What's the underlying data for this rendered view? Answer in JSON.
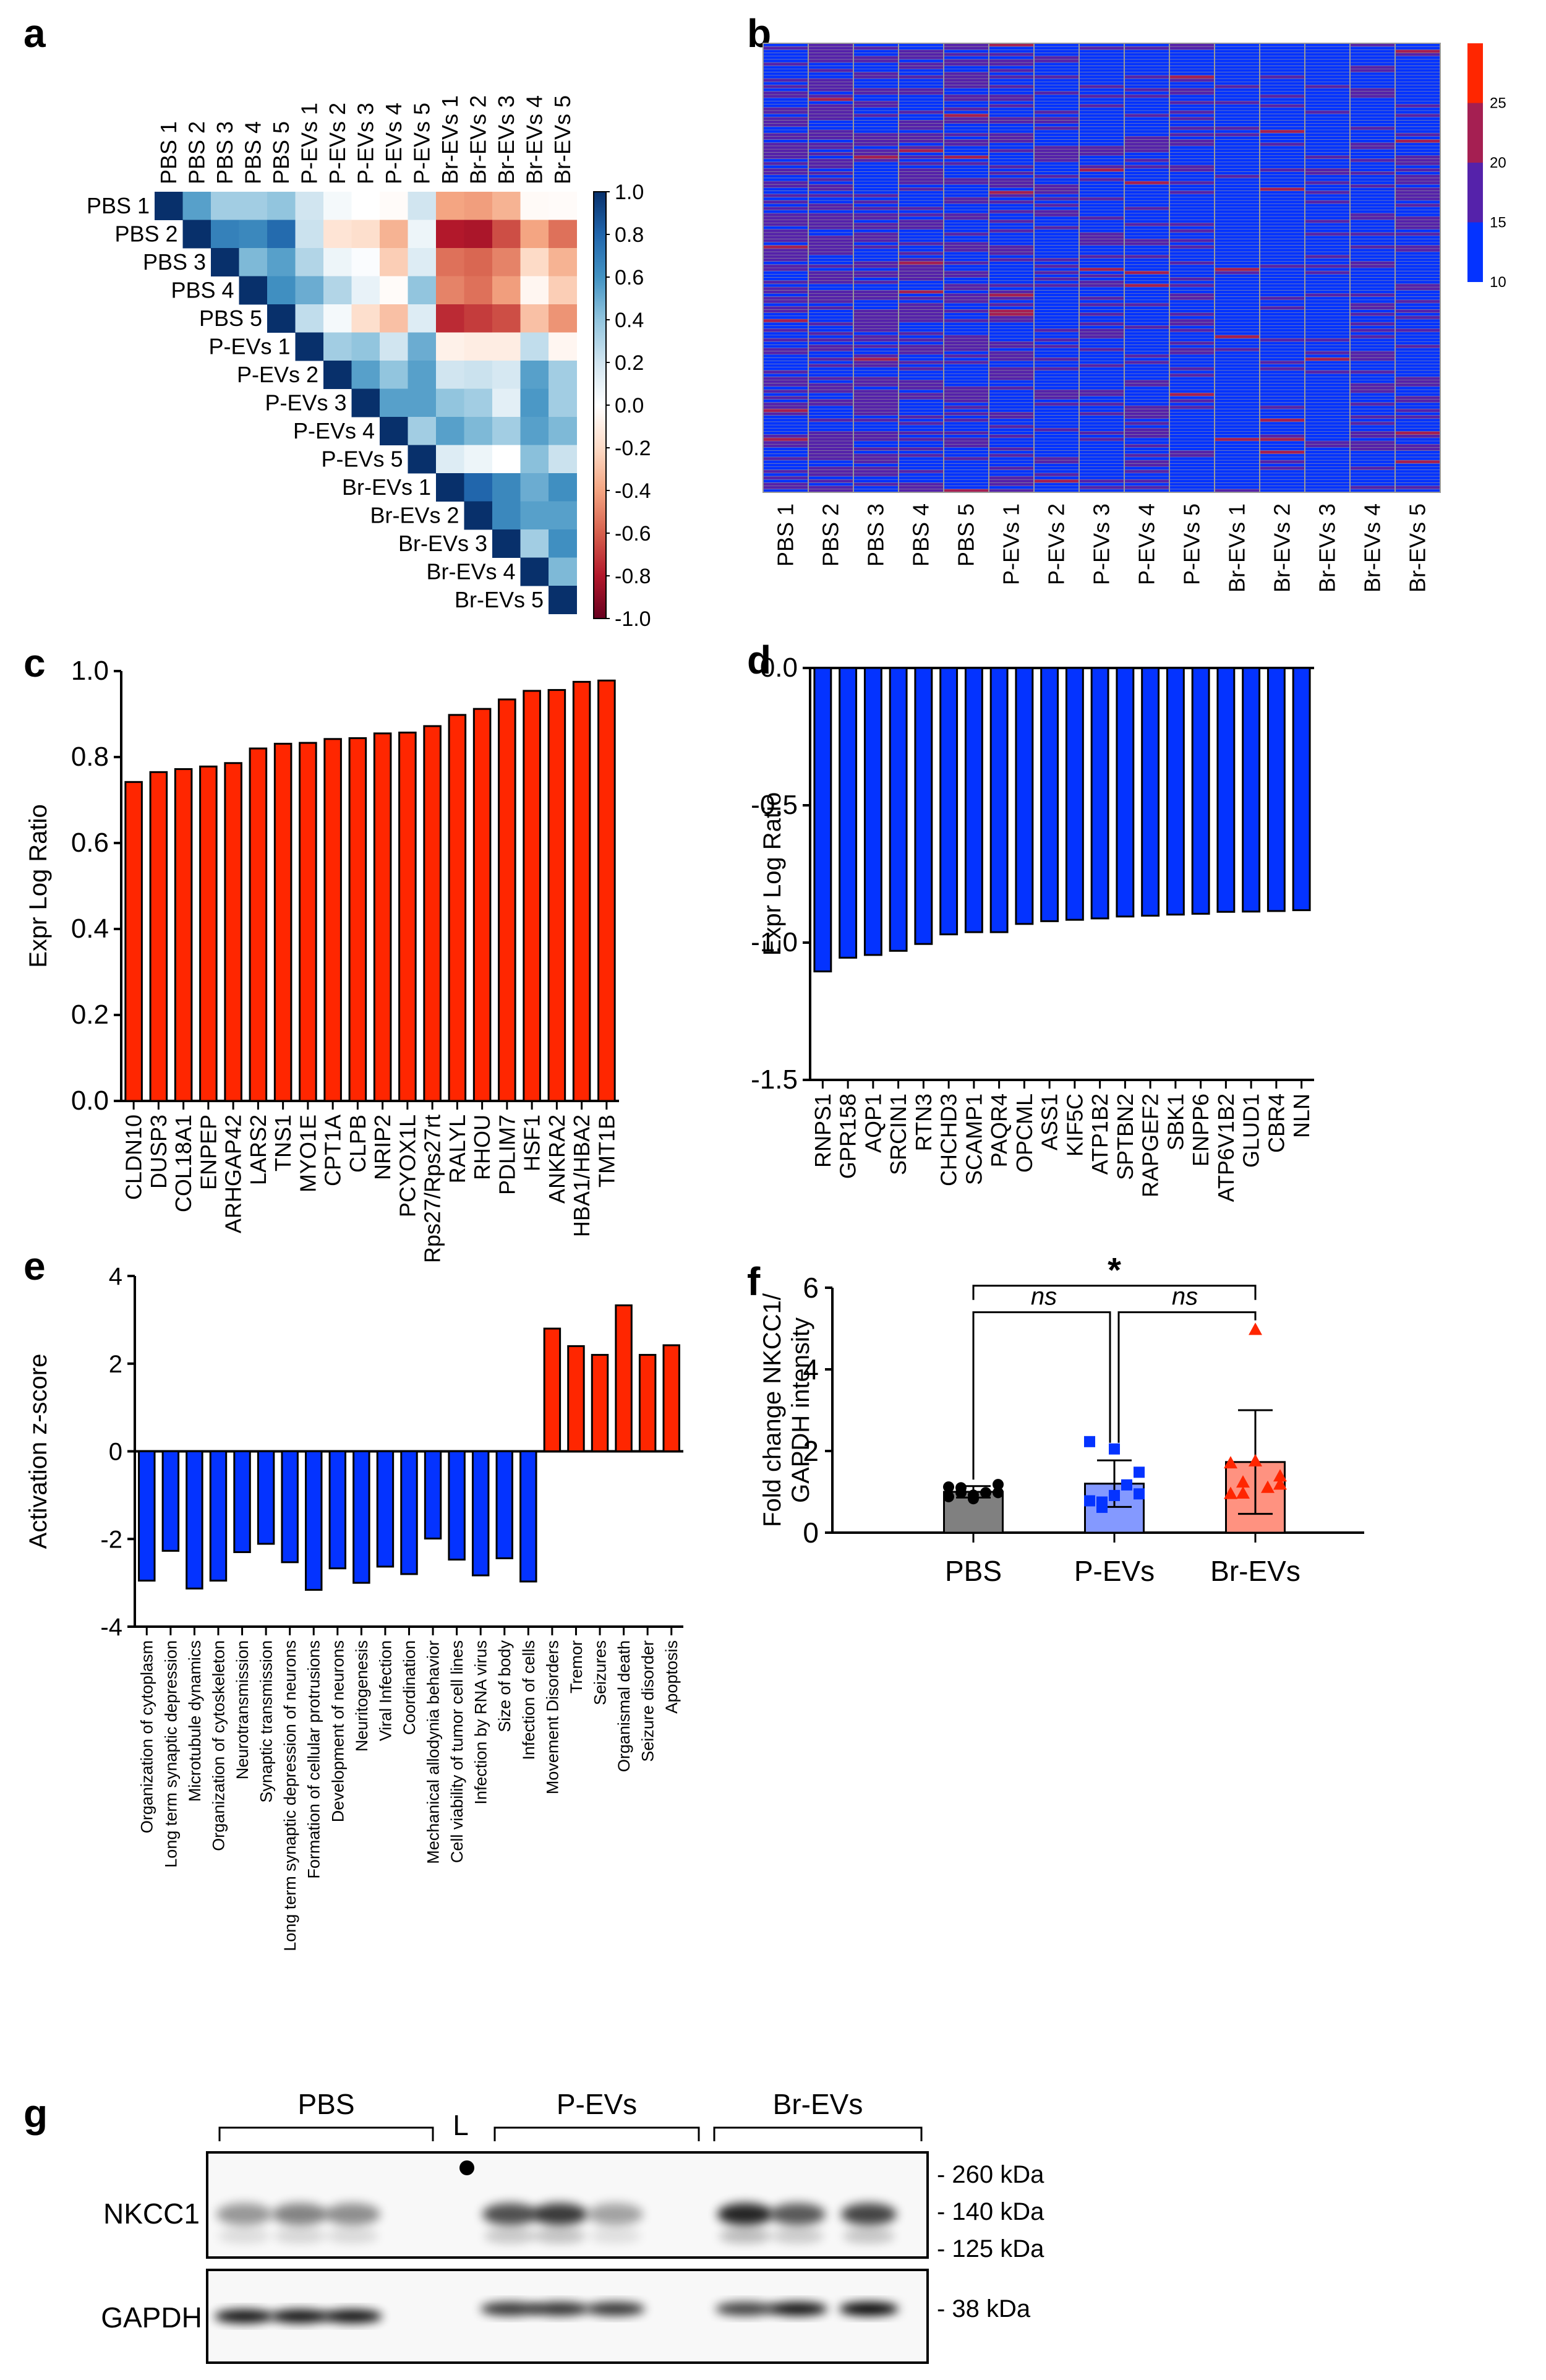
{
  "panel_labels": {
    "a": "a",
    "b": "b",
    "c": "c",
    "d": "d",
    "e": "e",
    "f": "f",
    "g": "g"
  },
  "chart_data": [
    {
      "id": "a",
      "type": "heatmap",
      "title": "",
      "samples": [
        "PBS 1",
        "PBS 2",
        "PBS 3",
        "PBS 4",
        "PBS 5",
        "P-EVs 1",
        "P-EVs 2",
        "P-EVs 3",
        "P-EVs 4",
        "P-EVs 5",
        "Br-EVs 1",
        "Br-EVs 2",
        "Br-EVs 3",
        "Br-EVs 4",
        "Br-EVs 5"
      ],
      "layout": "upper-triangle",
      "matrix": [
        [
          1.0,
          0.55,
          0.35,
          0.35,
          0.4,
          0.2,
          0.05,
          0.0,
          -0.02,
          0.2,
          -0.4,
          -0.42,
          -0.35,
          -0.03,
          -0.02
        ],
        [
          null,
          1.0,
          0.68,
          0.65,
          0.78,
          0.22,
          -0.15,
          -0.18,
          -0.35,
          0.08,
          -0.8,
          -0.82,
          -0.65,
          -0.4,
          -0.55
        ],
        [
          null,
          null,
          1.0,
          0.45,
          0.55,
          0.3,
          0.08,
          0.02,
          -0.25,
          0.15,
          -0.55,
          -0.58,
          -0.5,
          -0.2,
          -0.35
        ],
        [
          null,
          null,
          null,
          1.0,
          0.62,
          0.5,
          0.3,
          0.1,
          -0.02,
          0.4,
          -0.5,
          -0.55,
          -0.42,
          -0.05,
          -0.25
        ],
        [
          null,
          null,
          null,
          null,
          1.0,
          0.25,
          0.05,
          -0.18,
          -0.3,
          0.15,
          -0.75,
          -0.7,
          -0.65,
          -0.3,
          -0.45
        ],
        [
          null,
          null,
          null,
          null,
          null,
          1.0,
          0.35,
          0.4,
          0.2,
          0.5,
          -0.08,
          -0.1,
          -0.1,
          0.25,
          -0.05
        ],
        [
          null,
          null,
          null,
          null,
          null,
          null,
          1.0,
          0.55,
          0.4,
          0.55,
          0.2,
          0.22,
          0.18,
          0.55,
          0.35
        ],
        [
          null,
          null,
          null,
          null,
          null,
          null,
          null,
          1.0,
          0.55,
          0.55,
          0.4,
          0.35,
          0.12,
          0.58,
          0.35
        ],
        [
          null,
          null,
          null,
          null,
          null,
          null,
          null,
          null,
          1.0,
          0.35,
          0.55,
          0.45,
          0.35,
          0.55,
          0.45
        ],
        [
          null,
          null,
          null,
          null,
          null,
          null,
          null,
          null,
          null,
          1.0,
          0.15,
          0.08,
          0.0,
          0.42,
          0.22
        ],
        [
          null,
          null,
          null,
          null,
          null,
          null,
          null,
          null,
          null,
          null,
          1.0,
          0.8,
          0.65,
          0.5,
          0.62
        ],
        [
          null,
          null,
          null,
          null,
          null,
          null,
          null,
          null,
          null,
          null,
          null,
          1.0,
          0.65,
          0.55,
          0.55
        ],
        [
          null,
          null,
          null,
          null,
          null,
          null,
          null,
          null,
          null,
          null,
          null,
          null,
          1.0,
          0.35,
          0.62
        ],
        [
          null,
          null,
          null,
          null,
          null,
          null,
          null,
          null,
          null,
          null,
          null,
          null,
          null,
          1.0,
          0.45
        ],
        [
          null,
          null,
          null,
          null,
          null,
          null,
          null,
          null,
          null,
          null,
          null,
          null,
          null,
          null,
          1.0
        ]
      ],
      "colorbar": {
        "range": [
          -1.0,
          1.0
        ],
        "ticks": [
          "1.0",
          "0.8",
          "0.6",
          "0.4",
          "0.2",
          "0.0",
          "-0.2",
          "-0.4",
          "-0.6",
          "-0.8",
          "-1.0"
        ],
        "colormap": "RdBu",
        "low_color": "#67001f",
        "mid_color": "#ffffff",
        "high_color": "#08306b"
      }
    },
    {
      "id": "b",
      "type": "heatmap",
      "title": "",
      "samples": [
        "PBS 1",
        "PBS 2",
        "PBS 3",
        "PBS 4",
        "PBS 5",
        "P-EVs 1",
        "P-EVs 2",
        "P-EVs 3",
        "P-EVs 4",
        "P-EVs 5",
        "Br-EVs 1",
        "Br-EVs 2",
        "Br-EVs 3",
        "Br-EVs 4",
        "Br-EVs 5"
      ],
      "n_rows": 140,
      "group_tendency": [
        0.55,
        0.6,
        0.5,
        0.48,
        0.5,
        0.35,
        0.3,
        0.3,
        0.22,
        0.3,
        0.1,
        0.12,
        0.15,
        0.3,
        0.35
      ],
      "colorbar": {
        "ticks": [
          "25",
          "20",
          "15",
          "10"
        ],
        "bins": [
          {
            "range": [
              10,
              15
            ],
            "color": "#0433ff"
          },
          {
            "range": [
              15,
              20
            ],
            "color": "#5522aa"
          },
          {
            "range": [
              20,
              25
            ],
            "color": "#a51f52"
          },
          {
            "range": [
              25,
              30
            ],
            "color": "#ff2600"
          }
        ]
      }
    },
    {
      "id": "c",
      "type": "bar",
      "title": "",
      "xlabel": "",
      "ylabel": "Expr Log Ratio",
      "ylim": [
        0.0,
        1.0
      ],
      "yticks": [
        "0.0",
        "0.2",
        "0.4",
        "0.6",
        "0.8",
        "1.0"
      ],
      "ytick_values": [
        0,
        0.2,
        0.4,
        0.6,
        0.8,
        1.0
      ],
      "color": "#ff2600",
      "categories": [
        "CLDN10",
        "DUSP3",
        "COL18A1",
        "ENPEP",
        "ARHGAP42",
        "LARS2",
        "TNS1",
        "MYO1E",
        "CPT1A",
        "CLPB",
        "NRIP2",
        "PCYOX1L",
        "Rps27/Rps27rt",
        "RALYL",
        "RHOU",
        "PDLIM7",
        "HSF1",
        "ANKRA2",
        "HBA1/HBA2",
        "TMT1B"
      ],
      "values": [
        0.742,
        0.765,
        0.772,
        0.778,
        0.786,
        0.82,
        0.831,
        0.833,
        0.842,
        0.844,
        0.855,
        0.857,
        0.872,
        0.898,
        0.912,
        0.934,
        0.954,
        0.956,
        0.975,
        0.978
      ]
    },
    {
      "id": "d",
      "type": "bar",
      "title": "",
      "xlabel": "",
      "ylabel": "Expr Log Ratio",
      "ylim": [
        -1.5,
        0.0
      ],
      "yticks": [
        "0.0",
        "-0.5",
        "-1.0",
        "-1.5"
      ],
      "ytick_values": [
        0,
        -0.5,
        -1.0,
        -1.5
      ],
      "color": "#0433ff",
      "categories": [
        "RNPS1",
        "GPR158",
        "AQP1",
        "SRCIN1",
        "RTN3",
        "CHCHD3",
        "SCAMP1",
        "PAQR4",
        "OPCML",
        "ASS1",
        "KIF5C",
        "ATP1B2",
        "SPTBN2",
        "RAPGEF2",
        "SBK1",
        "ENPP6",
        "ATP6V1B2",
        "GLUD1",
        "CBR4",
        "NLN"
      ],
      "values": [
        -1.105,
        -1.055,
        -1.045,
        -1.03,
        -1.005,
        -0.97,
        -0.962,
        -0.962,
        -0.932,
        -0.922,
        -0.917,
        -0.912,
        -0.905,
        -0.902,
        -0.898,
        -0.895,
        -0.888,
        -0.887,
        -0.885,
        -0.882
      ]
    },
    {
      "id": "e",
      "type": "bar",
      "title": "",
      "xlabel": "",
      "ylabel": "Activation z-score",
      "ylim": [
        -4,
        4
      ],
      "yticks": [
        "4",
        "2",
        "0",
        "-2",
        "-4"
      ],
      "ytick_values": [
        4,
        2,
        0,
        -2,
        -4
      ],
      "colors": {
        "negative": "#0433ff",
        "positive": "#ff2600"
      },
      "categories": [
        "Organization of cytoplasm",
        "Long term synaptic depression",
        "Microtubule dynamics",
        "Organization of cytoskeleton",
        "Neurotransmission",
        "Synaptic transmission",
        "Long term synaptic depression of neurons",
        "Formation of cellular protrusions",
        "Development of neurons",
        "Neuritogenesis",
        "Viral Infection",
        "Coordination",
        "Mechanical allodynia behavior",
        "Cell viability of tumor cell lines",
        "Infection by RNA virus",
        "Size of body",
        "Infection of cells",
        "Movement Disorders",
        "Tremor",
        "Seizures",
        "Organismal death",
        "Seizure disorder",
        "Apoptosis"
      ],
      "values": [
        -2.95,
        -2.27,
        -3.13,
        -2.95,
        -2.3,
        -2.11,
        -2.53,
        -3.16,
        -2.67,
        -3.0,
        -2.63,
        -2.8,
        -1.99,
        -2.47,
        -2.83,
        -2.44,
        -2.97,
        2.8,
        2.4,
        2.2,
        3.33,
        2.2,
        2.42
      ]
    },
    {
      "id": "f",
      "type": "bar",
      "title": "",
      "xlabel": "",
      "ylabel": "Fold change NKCC1/\nGAPDH intensity",
      "ylabel_lines": [
        "Fold change NKCC1/",
        "GAPDH intensity"
      ],
      "ylim": [
        0,
        6
      ],
      "yticks": [
        "0",
        "2",
        "4",
        "6"
      ],
      "ytick_values": [
        0,
        2,
        4,
        6
      ],
      "categories": [
        "PBS",
        "P-EVs",
        "Br-EVs"
      ],
      "values": [
        1.0,
        1.2,
        1.73
      ],
      "error_sd": [
        0.14,
        0.57,
        1.27
      ],
      "bar_colors": [
        "#808080",
        "#8499ff",
        "#ff9280"
      ],
      "point_colors": [
        "#000000",
        "#0433ff",
        "#ff2600"
      ],
      "point_shapes": [
        "circle",
        "square",
        "triangle"
      ],
      "points": [
        [
          1.12,
          1.1,
          0.92,
          0.98,
          0.98,
          0.88,
          0.83,
          1.18,
          0.98
        ],
        [
          2.23,
          0.62,
          0.91,
          1.17,
          1.48,
          0.78,
          2.05,
          0.95,
          0.75
        ],
        [
          0.96,
          1.24,
          4.98,
          1.11,
          1.39,
          1.71,
          1.76,
          1.19,
          0.97
        ]
      ],
      "comparisons": [
        {
          "groups": [
            "PBS",
            "P-EVs"
          ],
          "label": "ns"
        },
        {
          "groups": [
            "P-EVs",
            "Br-EVs"
          ],
          "label": "ns"
        },
        {
          "groups": [
            "PBS",
            "Br-EVs"
          ],
          "label": "*"
        }
      ]
    }
  ],
  "western_blot": {
    "group_labels": [
      "PBS",
      "L",
      "P-EVs",
      "Br-EVs"
    ],
    "row_labels": [
      "NKCC1",
      "GAPDH"
    ],
    "markers_top": [
      "- 260 kDa",
      "- 140 kDa",
      "- 125 kDa"
    ],
    "markers_bottom": [
      "- 38 kDa"
    ],
    "nkcc1_band_intensity": [
      0.45,
      0.55,
      0.5,
      0.0,
      0.8,
      0.9,
      0.4,
      1.0,
      0.75,
      0.85
    ],
    "gapdh_band_intensity": [
      0.95,
      0.95,
      0.95,
      0.0,
      0.8,
      0.82,
      0.8,
      0.75,
      0.95,
      1.0
    ]
  }
}
